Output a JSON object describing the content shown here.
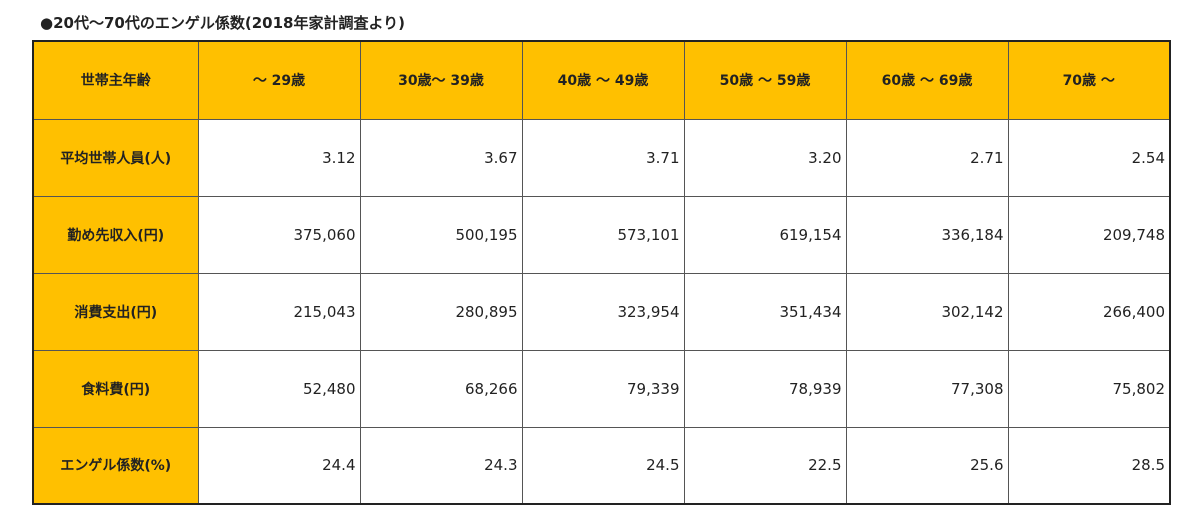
{
  "caption": "●20代～70代のエンゲル係数(2018年家計調査より)",
  "table": {
    "corner_label": "世帯主年齢",
    "columns": [
      "～ 29歳",
      "30歳～ 39歳",
      "40歳 ～ 49歳",
      "50歳 ～ 59歳",
      "60歳 ～ 69歳",
      "70歳 ～"
    ],
    "rows": [
      {
        "label": "平均世帯人員(人)",
        "values": [
          "3.12",
          "3.67",
          "3.71",
          "3.20",
          "2.71",
          "2.54"
        ]
      },
      {
        "label": "勤め先収入(円)",
        "values": [
          "375,060",
          "500,195",
          "573,101",
          "619,154",
          "336,184",
          "209,748"
        ]
      },
      {
        "label": "消費支出(円)",
        "values": [
          "215,043",
          "280,895",
          "323,954",
          "351,434",
          "302,142",
          "266,400"
        ]
      },
      {
        "label": "食料費(円)",
        "values": [
          "52,480",
          "68,266",
          "79,339",
          "78,939",
          "77,308",
          "75,802"
        ]
      },
      {
        "label": "エンゲル係数(%)",
        "values": [
          "24.4",
          "24.3",
          "24.5",
          "22.5",
          "25.6",
          "28.5"
        ]
      }
    ]
  },
  "colors": {
    "header_fill": "#ffc000",
    "border": "#222222"
  }
}
